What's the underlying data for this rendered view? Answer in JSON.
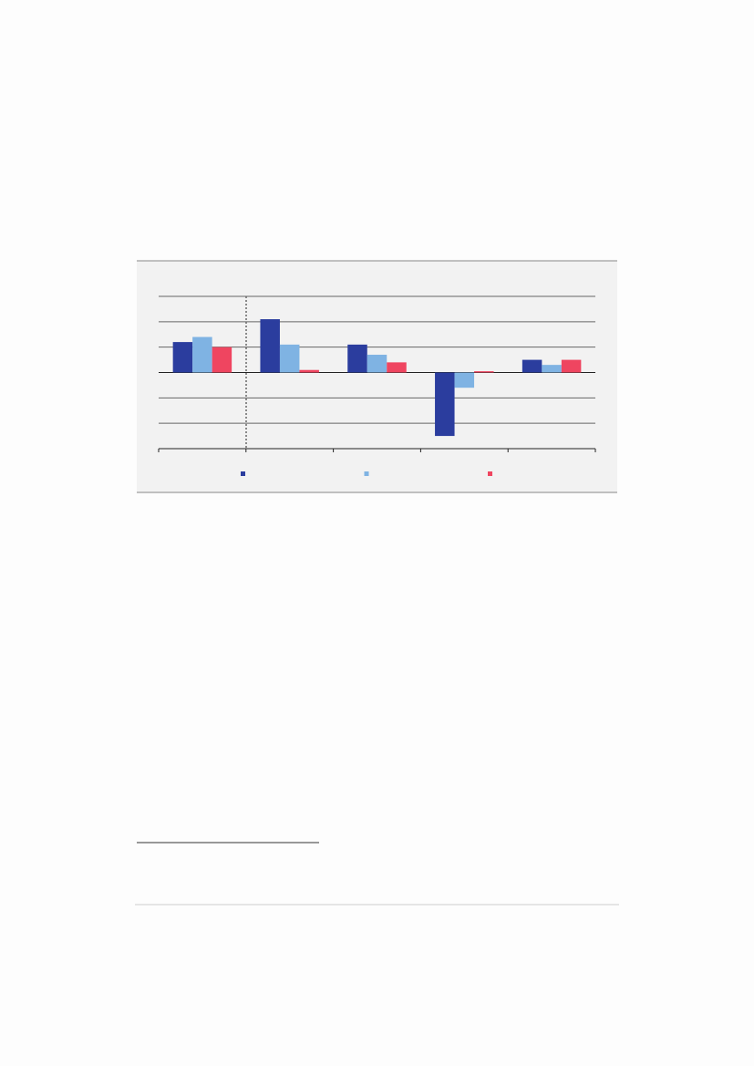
{
  "chart_data": {
    "type": "bar",
    "categories": [
      null,
      null,
      null,
      null,
      null
    ],
    "series": [
      {
        "color": "#2b3d9e",
        "values": [
          1.2,
          2.1,
          1.1,
          -2.5,
          0.5
        ]
      },
      {
        "color": "#7fb3e3",
        "values": [
          1.4,
          1.1,
          0.7,
          -0.6,
          0.3
        ]
      },
      {
        "color": "#ef4560",
        "values": [
          1.0,
          0.1,
          0.4,
          0.05,
          0.5
        ]
      }
    ],
    "ylim": [
      -3,
      3
    ],
    "yticks": [
      -3,
      -2,
      -1,
      0,
      1,
      2,
      3
    ],
    "grid": true
  }
}
